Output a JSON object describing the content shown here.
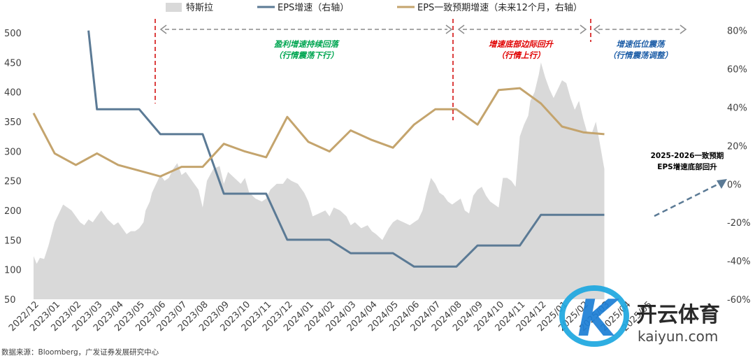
{
  "chart_data": {
    "type": "line",
    "categories": [
      "2022/12",
      "2023/01",
      "2023/02",
      "2023/03",
      "2023/04",
      "2023/05",
      "2023/06",
      "2023/07",
      "2023/08",
      "2023/09",
      "2023/10",
      "2023/11",
      "2023/12",
      "2024/01",
      "2024/02",
      "2024/03",
      "2024/04",
      "2024/05",
      "2024/06",
      "2024/07",
      "2024/08",
      "2024/09",
      "2024/10",
      "2024/11",
      "2024/12",
      "2025/01",
      "2025/02",
      "2025/03",
      "2025/04",
      "2025/05"
    ],
    "left_axis": {
      "ticks": [
        "500",
        "450",
        "400",
        "350",
        "300",
        "250",
        "200",
        "150",
        "100",
        "50"
      ],
      "ylim": [
        50,
        520
      ]
    },
    "right_axis": {
      "ticks": [
        "80%",
        "60%",
        "40%",
        "20%",
        "0%",
        "-20%",
        "-40%",
        "-60%"
      ],
      "ylim": [
        -60,
        85
      ]
    },
    "series": [
      {
        "name": "特斯拉",
        "type": "area",
        "axis": "left",
        "color": "#d9d9d9",
        "x": [
          0,
          0.15,
          0.3,
          0.5,
          0.7,
          1.0,
          1.2,
          1.4,
          1.6,
          1.8,
          2.0,
          2.2,
          2.4,
          2.6,
          2.8,
          3.0,
          3.2,
          3.5,
          3.8,
          4.0,
          4.2,
          4.4,
          4.6,
          4.8,
          5.0,
          5.2,
          5.3,
          5.5,
          5.6,
          5.8,
          6.0,
          6.2,
          6.4,
          6.6,
          6.8,
          7.0,
          7.2,
          7.5,
          7.8,
          8.0,
          8.2,
          8.5,
          8.8,
          9.0,
          9.2,
          9.5,
          9.8,
          10.0,
          10.2,
          10.5,
          10.8,
          11.0,
          11.2,
          11.5,
          11.8,
          12.0,
          12.2,
          12.5,
          12.8,
          13.0,
          13.2,
          13.5,
          13.8,
          14.0,
          14.2,
          14.5,
          14.8,
          15.0,
          15.2,
          15.5,
          15.8,
          16.0,
          16.2,
          16.5,
          16.8,
          17.0,
          17.2,
          17.5,
          17.8,
          18.0,
          18.2,
          18.4,
          18.6,
          18.8,
          19.0,
          19.2,
          19.4,
          19.6,
          19.8,
          20.0,
          20.2,
          20.4,
          20.6,
          20.8,
          21.0,
          21.2,
          21.4,
          21.6,
          21.8,
          22.0,
          22.2,
          22.4,
          22.6,
          22.8,
          23.0,
          23.2,
          23.4,
          23.5,
          23.7,
          23.9,
          24.0,
          24.2,
          24.4,
          24.6,
          24.8,
          25.0,
          25.2,
          25.4,
          25.6,
          25.8,
          26.0,
          26.2,
          26.4,
          26.6,
          26.8,
          27.0
        ],
        "values": [
          123,
          110,
          120,
          118,
          140,
          180,
          195,
          210,
          205,
          200,
          190,
          180,
          175,
          185,
          180,
          190,
          200,
          185,
          175,
          180,
          170,
          160,
          165,
          165,
          170,
          180,
          200,
          215,
          230,
          245,
          260,
          250,
          255,
          270,
          280,
          260,
          265,
          250,
          235,
          205,
          250,
          270,
          275,
          245,
          265,
          255,
          245,
          255,
          230,
          220,
          215,
          220,
          235,
          245,
          245,
          255,
          250,
          245,
          230,
          215,
          190,
          195,
          200,
          190,
          205,
          200,
          190,
          175,
          180,
          170,
          175,
          165,
          160,
          150,
          170,
          180,
          185,
          180,
          175,
          180,
          185,
          200,
          230,
          255,
          245,
          230,
          225,
          215,
          210,
          215,
          220,
          200,
          195,
          225,
          235,
          240,
          225,
          215,
          210,
          205,
          255,
          255,
          250,
          240,
          325,
          345,
          360,
          385,
          400,
          430,
          450,
          425,
          405,
          390,
          405,
          420,
          415,
          390,
          370,
          385,
          355,
          330,
          330,
          350,
          310,
          270
        ]
      },
      {
        "name": "EPS增速（右轴）",
        "type": "line",
        "axis": "right",
        "color": "#5b7a95",
        "x": [
          2.6,
          3.0,
          5.0,
          6.0,
          8.0,
          9.0,
          11.0,
          12.0,
          14.0,
          15.0,
          17.0,
          18.0,
          20.0,
          21.0,
          23.0,
          24.0,
          26.0,
          27.0
        ],
        "values": [
          80,
          39,
          39,
          26,
          26,
          -5,
          -5,
          -29,
          -29,
          -36,
          -36,
          -43,
          -43,
          -32,
          -32,
          -16,
          -16,
          -16
        ]
      },
      {
        "name": "EPS一致预期增速（未来12个月，右轴）",
        "type": "line",
        "axis": "right",
        "color": "#c4a46d",
        "x": [
          0,
          1,
          2,
          3,
          4,
          5,
          6,
          7,
          8,
          9,
          10,
          11,
          12,
          13,
          14,
          15,
          16,
          17,
          18,
          19,
          20,
          21,
          22,
          23,
          24,
          25,
          26,
          27
        ],
        "values": [
          37,
          16,
          10,
          16,
          10,
          7,
          4,
          9,
          9,
          21,
          17,
          14,
          35,
          22,
          17,
          28,
          23,
          19,
          31,
          39,
          39,
          31,
          49,
          50,
          42,
          30,
          27,
          26
        ]
      }
    ],
    "phases": [
      {
        "label_line1": "盈利增速持续回落",
        "label_line2": "（行情震荡下行）",
        "color": "#00a651"
      },
      {
        "label_line1": "增速底部边际回升",
        "label_line2": "（行情上行）",
        "color": "#e00000"
      },
      {
        "label_line1": "增速低位震荡",
        "label_line2": "（行情震荡调整）",
        "color": "#1f5fa8"
      }
    ],
    "outlook_annotation": {
      "line1": "2025-2026一致预期",
      "line2": "EPS增速底部回升"
    },
    "source": "数据来源：Bloomberg，广发证券发展研究中心",
    "grid": false,
    "legend_position": "top"
  },
  "watermark": {
    "brand": "开云体育",
    "domain": "kaiyun.com",
    "logo_letter": "K"
  }
}
